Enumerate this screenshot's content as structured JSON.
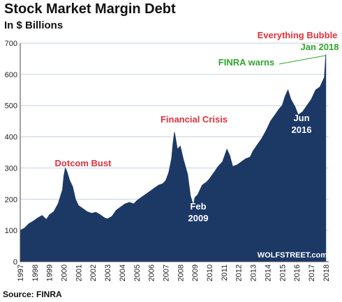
{
  "chart_data": {
    "type": "area",
    "title": "Stock Market Margin Debt",
    "subtitle": "In $ Billions",
    "source": "Source: FINRA",
    "watermark": "WOLFSTREET.com",
    "ylim": [
      0,
      700
    ],
    "yticks": [
      0,
      100,
      200,
      300,
      400,
      500,
      600,
      700
    ],
    "xlim": [
      1997,
      2018.2
    ],
    "xtick_labels": [
      "1997",
      "1998",
      "1999",
      "2000",
      "2001",
      "2002",
      "2003",
      "2004",
      "2005",
      "2006",
      "2007",
      "2008",
      "2009",
      "2010",
      "2011",
      "2012",
      "2013",
      "2014",
      "2015",
      "2016",
      "2017",
      "2018"
    ],
    "grid": true,
    "colors": {
      "area": "#1c3966",
      "grid": "#c6d2e3",
      "red_annotation": "#e0323c",
      "green_annotation": "#2ea52a"
    },
    "series": [
      {
        "x": [
          1997.0,
          1997.3,
          1997.6,
          1997.9,
          1998.2,
          1998.5,
          1998.8,
          1999.0,
          1999.3,
          1999.6,
          1999.9,
          2000.0,
          2000.1,
          2000.2,
          2000.4,
          2000.6,
          2000.8,
          2001.0,
          2001.3,
          2001.6,
          2001.9,
          2002.2,
          2002.5,
          2002.8,
          2003.0,
          2003.3,
          2003.6,
          2003.9,
          2004.2,
          2004.5,
          2004.8,
          2005.0,
          2005.3,
          2005.6,
          2005.9,
          2006.2,
          2006.5,
          2006.8,
          2007.0,
          2007.2,
          2007.4,
          2007.5,
          2007.6,
          2007.8,
          2008.0,
          2008.2,
          2008.5,
          2008.7,
          2008.9,
          2009.0,
          2009.2,
          2009.5,
          2009.8,
          2010.0,
          2010.3,
          2010.6,
          2010.9,
          2011.2,
          2011.4,
          2011.6,
          2011.9,
          2012.2,
          2012.5,
          2012.8,
          2013.0,
          2013.3,
          2013.6,
          2013.9,
          2014.2,
          2014.5,
          2014.8,
          2015.0,
          2015.2,
          2015.4,
          2015.6,
          2015.9,
          2016.1,
          2016.4,
          2016.7,
          2017.0,
          2017.3,
          2017.6,
          2017.9,
          2018.0
        ],
        "values": [
          100,
          108,
          122,
          130,
          140,
          148,
          135,
          150,
          160,
          185,
          230,
          275,
          300,
          290,
          260,
          240,
          200,
          180,
          170,
          160,
          155,
          158,
          150,
          140,
          137,
          145,
          165,
          175,
          185,
          190,
          185,
          195,
          205,
          215,
          225,
          235,
          245,
          250,
          260,
          285,
          330,
          380,
          415,
          360,
          370,
          330,
          280,
          210,
          180,
          205,
          215,
          245,
          255,
          265,
          285,
          305,
          320,
          360,
          340,
          305,
          310,
          320,
          330,
          335,
          355,
          375,
          395,
          420,
          450,
          470,
          490,
          500,
          530,
          550,
          520,
          495,
          470,
          480,
          500,
          520,
          550,
          560,
          590,
          665
        ]
      }
    ],
    "annotations": [
      {
        "text": "Dotcom Bust",
        "color": "red"
      },
      {
        "text": "Financial Crisis",
        "color": "red"
      },
      {
        "text": "Everything Bubble",
        "color": "red"
      },
      {
        "text": "Jan 2018",
        "color": "green"
      },
      {
        "text": "FINRA warns",
        "color": "green"
      },
      {
        "text": "Feb\n2009",
        "color": "white"
      },
      {
        "text": "Jun\n2016",
        "color": "white"
      }
    ]
  }
}
